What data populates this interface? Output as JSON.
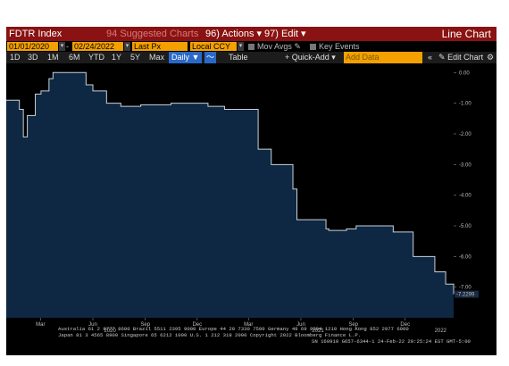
{
  "header": {
    "ticker": "FDTR Index",
    "suggested": "Suggested Charts",
    "suggested_num": "94",
    "actions": "Actions",
    "actions_num": "96",
    "edit": "Edit",
    "edit_num": "97",
    "title": "Line Chart"
  },
  "inputs": {
    "start_date": "01/01/2020",
    "end_date": "02/24/2022",
    "field": "Last Px",
    "currency": "Local CCY",
    "mov_avgs": "Mov Avgs",
    "key_events": "Key Events"
  },
  "toolbar": {
    "ranges": [
      "1D",
      "3D",
      "1M",
      "6M",
      "YTD",
      "1Y",
      "5Y",
      "Max"
    ],
    "frequency": "Daily",
    "table": "Table",
    "quick_add": "+ Quick-Add",
    "add_data_placeholder": "Add Data",
    "collapse": "«",
    "edit_chart": "Edit Chart",
    "colors": {
      "accent": "#f3a000",
      "title_bar": "#8a1212",
      "selected": "#2a68c8"
    }
  },
  "chart_data": {
    "type": "area",
    "series": [
      {
        "x": [
          "2020-01-01",
          "2020-01-24",
          "2020-01-31",
          "2020-02-07",
          "2020-02-21",
          "2020-03-02",
          "2020-03-16",
          "2020-03-23",
          "2020-05-20",
          "2020-06-01",
          "2020-06-25",
          "2020-07-20",
          "2020-08-24",
          "2020-10-16",
          "2020-12-20",
          "2021-01-18",
          "2021-03-18",
          "2021-04-10",
          "2021-05-18",
          "2021-05-25",
          "2021-07-15",
          "2021-07-20",
          "2021-08-20",
          "2021-09-06",
          "2021-11-10",
          "2021-12-15",
          "2022-01-22",
          "2022-02-10",
          "2022-02-24"
        ],
        "values": [
          -0.9,
          -1.2,
          -2.1,
          -1.4,
          -0.7,
          -0.6,
          -0.2,
          0.0,
          -0.4,
          -0.6,
          -1.0,
          -1.1,
          -1.05,
          -1.0,
          -1.1,
          -1.2,
          -2.5,
          -3.0,
          -3.8,
          -4.8,
          -5.1,
          -5.15,
          -5.1,
          -5.0,
          -5.2,
          -6.0,
          -6.5,
          -6.9,
          -7.2299
        ]
      }
    ],
    "last_value": "-7.2299",
    "x_ticks": [
      "Mar",
      "Jun",
      "Sep",
      "Dec",
      "Mar",
      "Jun",
      "Sep",
      "Dec"
    ],
    "x_years": [
      "2020",
      "2021",
      "2022"
    ],
    "y_ticks": [
      "0.00",
      "-1.00",
      "-2.00",
      "-3.00",
      "-4.00",
      "-5.00",
      "-6.00",
      "-7.00"
    ],
    "ylim": [
      -8.0,
      0.3
    ],
    "grid": false,
    "colors": {
      "fill": "#0e2742",
      "line": "#c9d3dc"
    }
  },
  "footer": {
    "line1": "Australia 61 2 9777 8600  Brazil 5511 2395 9000  Europe 44 20 7330 7500  Germany 49 69 9204 1210  Hong Kong 852 2977 6000",
    "line2": "Japan 81 3 4565 8900      Singapore 65 6212 1000      U.S. 1 212 318 2000              Copyright 2022 Bloomberg Finance L.P.",
    "line3": "SN 169910 G657-6344-1 24-Feb-22 20:25:24 EST  GMT-5:00"
  }
}
